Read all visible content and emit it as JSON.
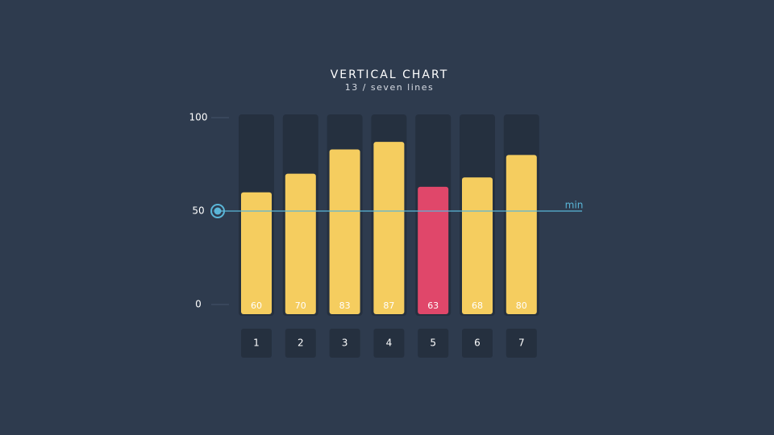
{
  "chart_data": {
    "type": "bar",
    "title": "VERTICAL CHART",
    "subtitle": "13 / seven lines",
    "categories": [
      "1",
      "2",
      "3",
      "4",
      "5",
      "6",
      "7"
    ],
    "values": [
      60,
      70,
      83,
      87,
      63,
      68,
      80
    ],
    "colors": [
      "#f5cd5f",
      "#f5cd5f",
      "#f5cd5f",
      "#f5cd5f",
      "#e0476a",
      "#f5cd5f",
      "#f5cd5f"
    ],
    "ylim": [
      0,
      100
    ],
    "yticks": [
      0,
      50,
      100
    ],
    "reference_line": {
      "value": 50,
      "label": "min",
      "color": "#5ab6d8"
    }
  }
}
